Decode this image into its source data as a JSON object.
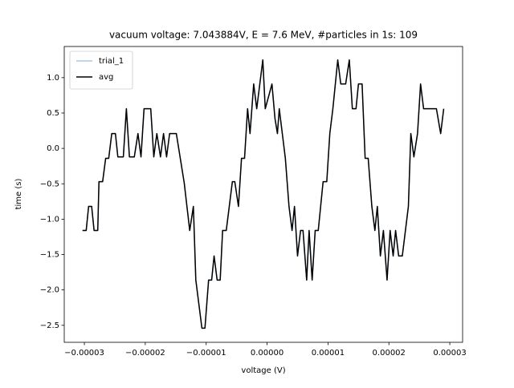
{
  "chart_data": {
    "type": "line",
    "title": "vacuum voltage: 7.043884V, E = 7.6 MeV, #particles in 1s: 109",
    "xlabel": "voltage (V)",
    "ylabel": "time (s)",
    "x": [
      -3.03e-05,
      -2.97e-05,
      -2.93e-05,
      -2.88e-05,
      -2.84e-05,
      -2.78e-05,
      -2.76e-05,
      -2.7e-05,
      -2.65e-05,
      -2.6e-05,
      -2.55e-05,
      -2.49e-05,
      -2.45e-05,
      -2.36e-05,
      -2.31e-05,
      -2.26e-05,
      -2.18e-05,
      -2.12e-05,
      -2.07e-05,
      -2.02e-05,
      -1.91e-05,
      -1.86e-05,
      -1.81e-05,
      -1.75e-05,
      -1.7e-05,
      -1.65e-05,
      -1.6e-05,
      -1.49e-05,
      -1.36e-05,
      -1.27e-05,
      -1.21e-05,
      -1.17e-05,
      -1.07e-05,
      -1.02e-05,
      -9.6e-06,
      -9.1e-06,
      -8.7e-06,
      -8.2e-06,
      -7.7e-06,
      -7.3e-06,
      -6.7e-06,
      -5.7e-06,
      -5.3e-06,
      -4.7e-06,
      -4.2e-06,
      -3.7e-06,
      -3.2e-06,
      -2.8e-06,
      -2.2e-06,
      -1.7e-06,
      -7e-07,
      -3e-07,
      8e-07,
      1.3e-06,
      1.7e-06,
      2e-06,
      3e-06,
      3.6e-06,
      4.1e-06,
      4.5e-06,
      5e-06,
      5.5e-06,
      5.9e-06,
      6.5e-06,
      6.9e-06,
      7.4e-06,
      7.9e-06,
      8.4e-06,
      9.2e-06,
      9.8e-06,
      1.03e-05,
      1.08e-05,
      1.16e-05,
      1.21e-05,
      1.29e-05,
      1.35e-05,
      1.4e-05,
      1.46e-05,
      1.5e-05,
      1.56e-05,
      1.61e-05,
      1.66e-05,
      1.72e-05,
      1.77e-05,
      1.81e-05,
      1.86e-05,
      1.91e-05,
      1.97e-05,
      2.02e-05,
      2.07e-05,
      2.11e-05,
      2.16e-05,
      2.22e-05,
      2.32e-05,
      2.36e-05,
      2.41e-05,
      2.47e-05,
      2.52e-05,
      2.57e-05,
      2.78e-05,
      2.85e-05,
      2.9e-05
    ],
    "series": [
      {
        "name": "trial_1",
        "color": "#a6c8e8",
        "values": [
          -1.16,
          -1.16,
          -0.82,
          -0.82,
          -1.16,
          -1.16,
          -0.47,
          -0.47,
          -0.14,
          -0.14,
          0.21,
          0.21,
          -0.12,
          -0.12,
          0.56,
          -0.12,
          -0.12,
          0.21,
          -0.12,
          0.56,
          0.56,
          -0.12,
          0.21,
          -0.12,
          0.21,
          -0.12,
          0.21,
          0.21,
          -0.49,
          -1.16,
          -0.82,
          -1.86,
          -2.54,
          -2.54,
          -1.86,
          -1.86,
          -1.52,
          -1.86,
          -1.86,
          -1.16,
          -1.16,
          -0.47,
          -0.47,
          -0.82,
          -0.14,
          -0.14,
          0.56,
          0.21,
          0.91,
          0.56,
          1.25,
          0.56,
          0.91,
          0.42,
          0.21,
          0.56,
          -0.14,
          -0.82,
          -1.16,
          -0.82,
          -1.52,
          -1.16,
          -1.16,
          -1.86,
          -1.16,
          -1.86,
          -1.16,
          -1.16,
          -0.47,
          -0.47,
          0.21,
          0.56,
          1.25,
          0.91,
          0.91,
          1.25,
          0.56,
          0.56,
          0.91,
          0.91,
          -0.14,
          -0.14,
          -0.82,
          -1.16,
          -0.82,
          -1.52,
          -1.16,
          -1.86,
          -1.16,
          -1.52,
          -1.16,
          -1.52,
          -1.52,
          -0.82,
          0.21,
          -0.12,
          0.21,
          0.91,
          0.56,
          0.56,
          0.21,
          0.56
        ]
      },
      {
        "name": "avg",
        "color": "#000000",
        "values": [
          -1.16,
          -1.16,
          -0.82,
          -0.82,
          -1.16,
          -1.16,
          -0.47,
          -0.47,
          -0.14,
          -0.14,
          0.21,
          0.21,
          -0.12,
          -0.12,
          0.56,
          -0.12,
          -0.12,
          0.21,
          -0.12,
          0.56,
          0.56,
          -0.12,
          0.21,
          -0.12,
          0.21,
          -0.12,
          0.21,
          0.21,
          -0.49,
          -1.16,
          -0.82,
          -1.86,
          -2.54,
          -2.54,
          -1.86,
          -1.86,
          -1.52,
          -1.86,
          -1.86,
          -1.16,
          -1.16,
          -0.47,
          -0.47,
          -0.82,
          -0.14,
          -0.14,
          0.56,
          0.21,
          0.91,
          0.56,
          1.25,
          0.56,
          0.91,
          0.42,
          0.21,
          0.56,
          -0.14,
          -0.82,
          -1.16,
          -0.82,
          -1.52,
          -1.16,
          -1.16,
          -1.86,
          -1.16,
          -1.86,
          -1.16,
          -1.16,
          -0.47,
          -0.47,
          0.21,
          0.56,
          1.25,
          0.91,
          0.91,
          1.25,
          0.56,
          0.56,
          0.91,
          0.91,
          -0.14,
          -0.14,
          -0.82,
          -1.16,
          -0.82,
          -1.52,
          -1.16,
          -1.86,
          -1.16,
          -1.52,
          -1.16,
          -1.52,
          -1.52,
          -0.82,
          0.21,
          -0.12,
          0.21,
          0.91,
          0.56,
          0.56,
          0.21,
          0.56
        ]
      }
    ],
    "xlim": [
      -3.33e-05,
      3.21e-05
    ],
    "xticks": [
      {
        "value": -3e-05,
        "label": "−0.00003"
      },
      {
        "value": -2e-05,
        "label": "−0.00002"
      },
      {
        "value": -1e-05,
        "label": "−0.00001"
      },
      {
        "value": 0,
        "label": "0.00000"
      },
      {
        "value": 1e-05,
        "label": "0.00001"
      },
      {
        "value": 2e-05,
        "label": "0.00002"
      },
      {
        "value": 3e-05,
        "label": "0.00003"
      }
    ],
    "ylim": [
      -2.74,
      1.44
    ],
    "yticks": [
      {
        "value": -2.5,
        "label": "−2.5"
      },
      {
        "value": -2,
        "label": "−2.0"
      },
      {
        "value": -1.5,
        "label": "−1.5"
      },
      {
        "value": -1,
        "label": "−1.0"
      },
      {
        "value": -0.5,
        "label": "−0.5"
      },
      {
        "value": 0,
        "label": "0.0"
      },
      {
        "value": 0.5,
        "label": "0.5"
      },
      {
        "value": 1,
        "label": "1.0"
      }
    ],
    "grid": false,
    "legend": "upper left"
  }
}
